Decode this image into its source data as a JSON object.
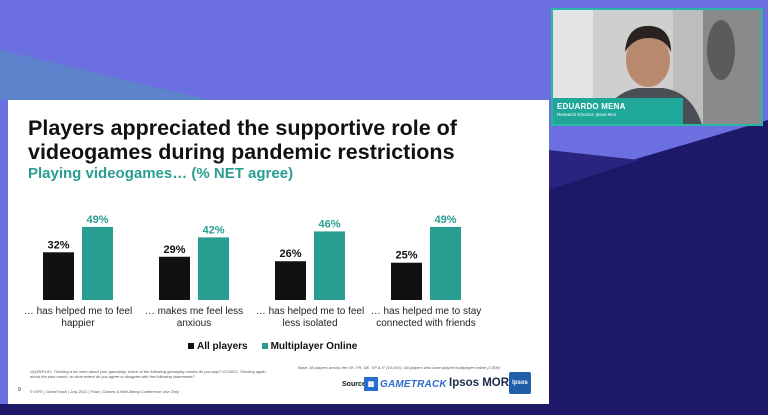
{
  "colors": {
    "accent": "#2a9d93",
    "bar_all_players": "#111111",
    "bar_multiplayer": "#2a9d93",
    "background_purple": "#6b6fe0",
    "background_navy": "#1e1868",
    "nameplate": "#1fa89a"
  },
  "presenter": {
    "name": "EDUARDO MENA",
    "role": "Research Director, Ipsos Mori"
  },
  "slide": {
    "title": "Players appreciated the supportive role of videogames during pandemic restrictions",
    "subtitle": "Playing videogames… (% NET agree)",
    "legend": {
      "all_players": "All players",
      "multiplayer_online": "Multiplayer Online"
    },
    "footnote_question": "GQ48/PLAY. Thinking a bit more about your gameplay, which of the following gameplay modes do you play? COVID3. Thinking again about the past month, to what extent do you agree or disagree with the following statements?",
    "footnote_base": "Base: All players  across the UK, FR, DE, SP & IT (10,930) / All players who have played multiplayer online (2,509)",
    "footer": "© ISFE | GameTrack | July 2021 | Final | Games & Well-Being Conference Use Only",
    "source_label": "Source:",
    "gametrack_text": "GAMETRACK",
    "ipsos_mori_text": "Ipsos MORI",
    "ipsos_logo_text": "Ipsos",
    "page_number": "9"
  },
  "chart_data": {
    "type": "bar",
    "categories": [
      "… has helped me to feel happier",
      "… makes me feel less anxious",
      "… has helped me to feel less isolated",
      "… has helped me to stay connected with friends"
    ],
    "category_lines": [
      [
        "… has helped me to feel",
        "happier"
      ],
      [
        "… makes me feel less",
        "anxious"
      ],
      [
        "… has helped me to feel",
        "less isolated"
      ],
      [
        "… has helped me to stay",
        "connected with friends"
      ]
    ],
    "series": [
      {
        "name": "All players",
        "values": [
          32,
          29,
          26,
          25
        ]
      },
      {
        "name": "Multiplayer Online",
        "values": [
          49,
          42,
          46,
          49
        ]
      }
    ],
    "value_suffix": "%",
    "title": "Players appreciated the supportive role of videogames during pandemic restrictions",
    "subtitle": "Playing videogames… (% NET agree)",
    "ylim": [
      0,
      55
    ],
    "legend_position": "bottom",
    "grid": false
  }
}
